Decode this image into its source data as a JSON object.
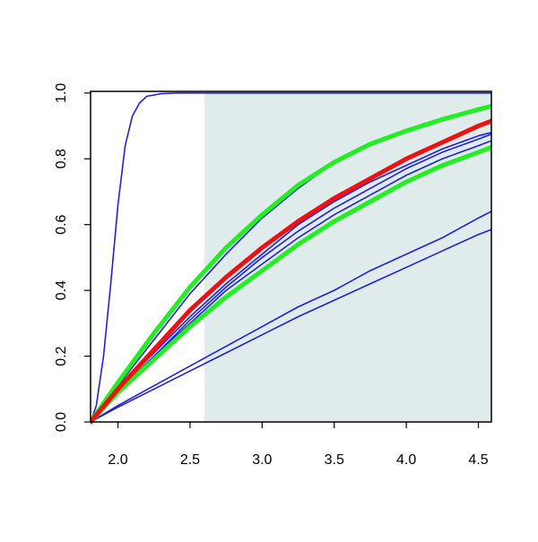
{
  "chart_data": {
    "type": "line",
    "xlim": [
      1.81,
      4.59
    ],
    "ylim": [
      0,
      1.005
    ],
    "xticks": [
      {
        "value": 2,
        "label": "2.0"
      },
      2.5,
      {
        "value": 3,
        "label": "3.0"
      },
      3.5,
      {
        "value": 4,
        "label": "4.0"
      },
      4.5
    ],
    "yticks": [
      {
        "value": 0,
        "label": "0.0"
      },
      0.2,
      0.4,
      0.6,
      0.8,
      {
        "value": 1,
        "label": "1.0"
      }
    ],
    "shade": {
      "from": 2.6,
      "color": "#e0ecec"
    },
    "series": [
      {
        "color": "#2020dd",
        "width": 1.6,
        "x": [
          1.81,
          1.85,
          1.9,
          1.95,
          2.0,
          2.05,
          2.1,
          2.15,
          2.2,
          2.3,
          2.4,
          2.6,
          3.0,
          4.59
        ],
        "values": [
          0,
          0.05,
          0.2,
          0.42,
          0.66,
          0.84,
          0.93,
          0.97,
          0.99,
          0.998,
          1,
          1,
          1,
          1
        ]
      },
      {
        "color": "#2020dd",
        "width": 1.6,
        "x": [
          1.81,
          2.0,
          2.25,
          2.5,
          2.75,
          3.0,
          3.25,
          3.5,
          3.75,
          4.0,
          4.25,
          4.5,
          4.59
        ],
        "values": [
          0,
          0.11,
          0.25,
          0.39,
          0.51,
          0.62,
          0.71,
          0.79,
          0.845,
          0.885,
          0.92,
          0.95,
          0.96
        ]
      },
      {
        "color": "#2020dd",
        "width": 1.6,
        "x": [
          1.81,
          2.0,
          2.25,
          2.5,
          2.75,
          3.0,
          3.25,
          3.5,
          3.75,
          4.0,
          4.25,
          4.5,
          4.59
        ],
        "values": [
          0,
          0.1,
          0.21,
          0.32,
          0.42,
          0.51,
          0.6,
          0.67,
          0.73,
          0.78,
          0.83,
          0.87,
          0.88
        ]
      },
      {
        "color": "#2020dd",
        "width": 1.6,
        "x": [
          1.81,
          2.0,
          2.25,
          2.5,
          2.75,
          3.0,
          3.25,
          3.5,
          3.75,
          4.0,
          4.25,
          4.5,
          4.59
        ],
        "values": [
          0,
          0.095,
          0.2,
          0.31,
          0.41,
          0.5,
          0.58,
          0.65,
          0.71,
          0.77,
          0.82,
          0.86,
          0.875
        ]
      },
      {
        "color": "#2020dd",
        "width": 1.6,
        "x": [
          1.81,
          2.0,
          2.25,
          2.5,
          2.75,
          3.0,
          3.25,
          3.5,
          3.75,
          4.0,
          4.25,
          4.5,
          4.59
        ],
        "values": [
          0,
          0.09,
          0.2,
          0.3,
          0.4,
          0.48,
          0.56,
          0.63,
          0.69,
          0.75,
          0.8,
          0.84,
          0.855
        ]
      },
      {
        "color": "#2020dd",
        "width": 1.6,
        "x": [
          1.81,
          2.0,
          2.25,
          2.5,
          2.75,
          3.0,
          3.25,
          3.5,
          3.75,
          4.0,
          4.25,
          4.5,
          4.59
        ],
        "values": [
          0,
          0.05,
          0.11,
          0.17,
          0.23,
          0.29,
          0.35,
          0.4,
          0.46,
          0.51,
          0.56,
          0.62,
          0.64
        ]
      },
      {
        "color": "#2020dd",
        "width": 1.6,
        "x": [
          1.81,
          2.0,
          2.25,
          2.5,
          2.75,
          3.0,
          3.25,
          3.5,
          3.75,
          4.0,
          4.25,
          4.5,
          4.59
        ],
        "values": [
          0,
          0.045,
          0.1,
          0.155,
          0.21,
          0.265,
          0.32,
          0.37,
          0.42,
          0.47,
          0.52,
          0.57,
          0.585
        ]
      },
      {
        "color": "#22ee22",
        "width": 5,
        "x": [
          1.81,
          2.0,
          2.25,
          2.5,
          2.75,
          3.0,
          3.25,
          3.5,
          3.75,
          4.0,
          4.25,
          4.5,
          4.59
        ],
        "values": [
          0,
          0.12,
          0.27,
          0.41,
          0.53,
          0.63,
          0.72,
          0.79,
          0.845,
          0.885,
          0.92,
          0.95,
          0.96
        ]
      },
      {
        "color": "#22ee22",
        "width": 5,
        "x": [
          1.81,
          2.0,
          2.25,
          2.5,
          2.75,
          3.0,
          3.25,
          3.5,
          3.75,
          4.0,
          4.25,
          4.5,
          4.59
        ],
        "values": [
          0,
          0.09,
          0.19,
          0.29,
          0.38,
          0.46,
          0.54,
          0.61,
          0.67,
          0.73,
          0.78,
          0.82,
          0.835
        ]
      },
      {
        "color": "#ee1111",
        "width": 5,
        "x": [
          1.81,
          2.0,
          2.25,
          2.5,
          2.75,
          3.0,
          3.25,
          3.5,
          3.75,
          4.0,
          4.25,
          4.5,
          4.59
        ],
        "values": [
          0,
          0.1,
          0.22,
          0.34,
          0.44,
          0.53,
          0.61,
          0.68,
          0.74,
          0.8,
          0.85,
          0.9,
          0.915
        ]
      }
    ]
  }
}
